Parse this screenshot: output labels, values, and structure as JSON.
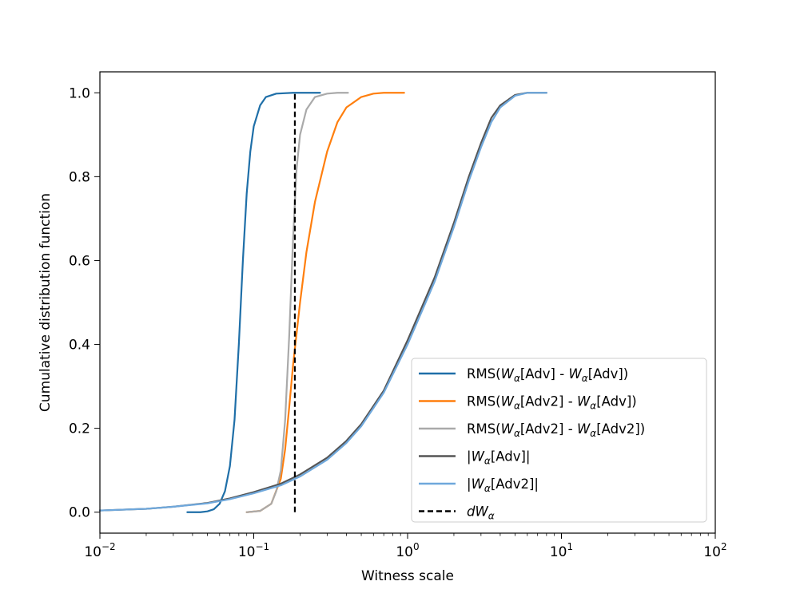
{
  "chart_data": {
    "type": "line",
    "title": "",
    "xlabel": "Witness scale",
    "ylabel": "Cumulative distribution function",
    "x_scale": "log",
    "xlim": [
      0.01,
      100
    ],
    "ylim": [
      -0.05,
      1.05
    ],
    "grid": false,
    "legend_position": "lower-right",
    "x_ticks": [
      {
        "value": 0.01,
        "base": "10",
        "exp": "−2"
      },
      {
        "value": 0.1,
        "base": "10",
        "exp": "−1"
      },
      {
        "value": 1,
        "base": "10",
        "exp": "0"
      },
      {
        "value": 10,
        "base": "10",
        "exp": "1"
      },
      {
        "value": 100,
        "base": "10",
        "exp": "2"
      }
    ],
    "y_ticks": [
      {
        "value": 0.0,
        "label": "0.0"
      },
      {
        "value": 0.2,
        "label": "0.2"
      },
      {
        "value": 0.4,
        "label": "0.4"
      },
      {
        "value": 0.6,
        "label": "0.6"
      },
      {
        "value": 0.8,
        "label": "0.8"
      },
      {
        "value": 1.0,
        "label": "1.0"
      }
    ],
    "series": [
      {
        "name": "RMS(Wα[Adv] - Wα[Adv])",
        "color": "#1f6fa8",
        "legend": {
          "prefix": "RMS(",
          "parts": [
            [
              "W",
              "α",
              "[Adv] - "
            ],
            [
              "W",
              "α",
              "[Adv])"
            ]
          ]
        },
        "points": [
          [
            0.037,
            0.0
          ],
          [
            0.045,
            0.0
          ],
          [
            0.05,
            0.002
          ],
          [
            0.055,
            0.007
          ],
          [
            0.06,
            0.02
          ],
          [
            0.065,
            0.05
          ],
          [
            0.07,
            0.11
          ],
          [
            0.075,
            0.22
          ],
          [
            0.08,
            0.4
          ],
          [
            0.085,
            0.6
          ],
          [
            0.09,
            0.76
          ],
          [
            0.095,
            0.86
          ],
          [
            0.1,
            0.92
          ],
          [
            0.11,
            0.97
          ],
          [
            0.12,
            0.99
          ],
          [
            0.14,
            0.998
          ],
          [
            0.18,
            1.0
          ],
          [
            0.27,
            1.0
          ]
        ]
      },
      {
        "name": "RMS(Wα[Adv2] - Wα[Adv])",
        "color": "#ff7f0e",
        "legend": {
          "prefix": "RMS(",
          "parts": [
            [
              "W",
              "α",
              "[Adv2] - "
            ],
            [
              "W",
              "α",
              "[Adv])"
            ]
          ]
        },
        "points": [
          [
            0.09,
            0.0
          ],
          [
            0.11,
            0.003
          ],
          [
            0.13,
            0.02
          ],
          [
            0.15,
            0.08
          ],
          [
            0.16,
            0.15
          ],
          [
            0.17,
            0.25
          ],
          [
            0.18,
            0.35
          ],
          [
            0.2,
            0.5
          ],
          [
            0.22,
            0.62
          ],
          [
            0.25,
            0.74
          ],
          [
            0.3,
            0.86
          ],
          [
            0.35,
            0.93
          ],
          [
            0.4,
            0.965
          ],
          [
            0.5,
            0.99
          ],
          [
            0.6,
            0.998
          ],
          [
            0.7,
            1.0
          ],
          [
            0.95,
            1.0
          ]
        ]
      },
      {
        "name": "RMS(Wα[Adv2] - Wα[Adv2])",
        "color": "#aaaaaa",
        "legend": {
          "prefix": "RMS(",
          "parts": [
            [
              "W",
              "α",
              "[Adv2] - "
            ],
            [
              "W",
              "α",
              "[Adv2])"
            ]
          ]
        },
        "points": [
          [
            0.09,
            0.0
          ],
          [
            0.11,
            0.003
          ],
          [
            0.13,
            0.02
          ],
          [
            0.14,
            0.05
          ],
          [
            0.15,
            0.1
          ],
          [
            0.16,
            0.22
          ],
          [
            0.17,
            0.42
          ],
          [
            0.18,
            0.65
          ],
          [
            0.19,
            0.82
          ],
          [
            0.2,
            0.9
          ],
          [
            0.22,
            0.96
          ],
          [
            0.25,
            0.99
          ],
          [
            0.3,
            0.998
          ],
          [
            0.35,
            1.0
          ],
          [
            0.41,
            1.0
          ]
        ]
      },
      {
        "name": "|Wα[Adv]|",
        "color": "#555555",
        "legend": {
          "prefix": "|",
          "parts": [
            [
              "W",
              "α",
              "[Adv]|"
            ]
          ]
        },
        "points": [
          [
            0.01,
            0.004
          ],
          [
            0.02,
            0.008
          ],
          [
            0.03,
            0.013
          ],
          [
            0.05,
            0.022
          ],
          [
            0.07,
            0.033
          ],
          [
            0.1,
            0.048
          ],
          [
            0.15,
            0.068
          ],
          [
            0.2,
            0.09
          ],
          [
            0.3,
            0.13
          ],
          [
            0.4,
            0.17
          ],
          [
            0.5,
            0.21
          ],
          [
            0.7,
            0.29
          ],
          [
            1.0,
            0.41
          ],
          [
            1.5,
            0.56
          ],
          [
            2.0,
            0.69
          ],
          [
            2.5,
            0.8
          ],
          [
            3.0,
            0.88
          ],
          [
            3.5,
            0.94
          ],
          [
            4.0,
            0.97
          ],
          [
            5.0,
            0.995
          ],
          [
            6.0,
            1.0
          ],
          [
            8.0,
            1.0
          ]
        ]
      },
      {
        "name": "|Wα[Adv2]|",
        "color": "#6fa8dc",
        "legend": {
          "prefix": "|",
          "parts": [
            [
              "W",
              "α",
              "[Adv2]|"
            ]
          ]
        },
        "points": [
          [
            0.01,
            0.004
          ],
          [
            0.02,
            0.008
          ],
          [
            0.03,
            0.013
          ],
          [
            0.05,
            0.021
          ],
          [
            0.07,
            0.031
          ],
          [
            0.1,
            0.045
          ],
          [
            0.15,
            0.064
          ],
          [
            0.2,
            0.085
          ],
          [
            0.3,
            0.125
          ],
          [
            0.4,
            0.165
          ],
          [
            0.5,
            0.205
          ],
          [
            0.7,
            0.285
          ],
          [
            1.0,
            0.4
          ],
          [
            1.5,
            0.55
          ],
          [
            2.0,
            0.68
          ],
          [
            2.5,
            0.79
          ],
          [
            3.0,
            0.87
          ],
          [
            3.5,
            0.93
          ],
          [
            4.0,
            0.965
          ],
          [
            5.0,
            0.993
          ],
          [
            6.0,
            1.0
          ],
          [
            8.0,
            1.0
          ]
        ]
      }
    ],
    "reference_line": {
      "name": "dWα",
      "x": 0.185,
      "y_range": [
        0.0,
        1.0
      ],
      "color": "#000000",
      "style": "dashed",
      "legend": {
        "prefix": "",
        "parts": [
          [
            "dW",
            "α",
            ""
          ]
        ]
      }
    }
  }
}
